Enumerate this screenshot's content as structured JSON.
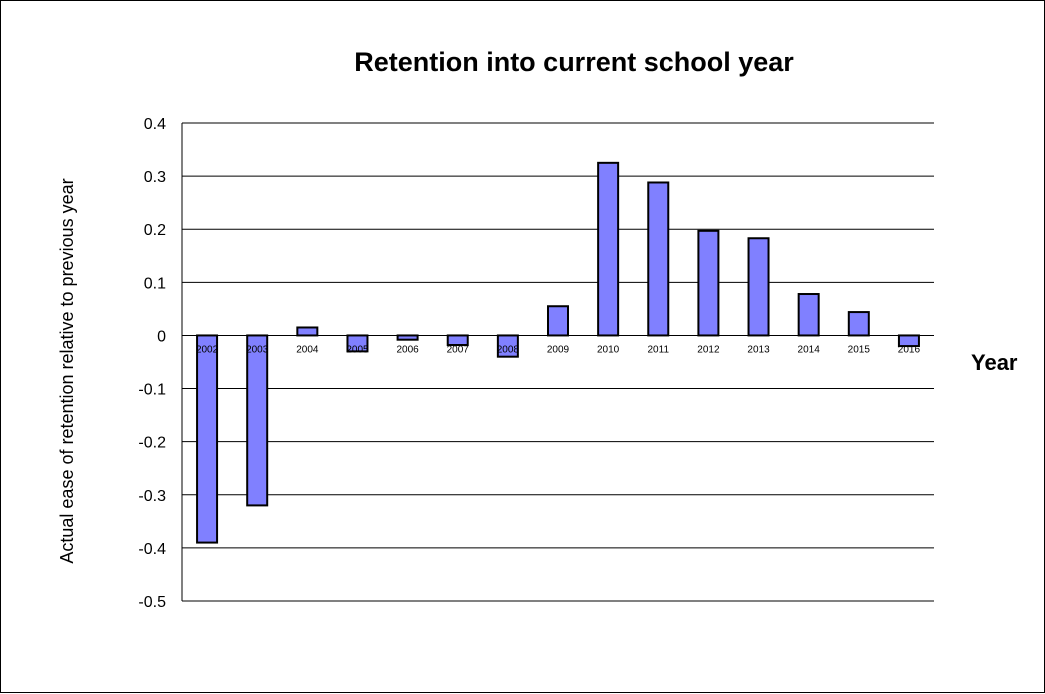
{
  "chart_data": {
    "type": "bar",
    "title": "Retention into current school year",
    "xlabel": "Year",
    "ylabel": "Actual ease of retention relative to previous year",
    "categories": [
      "2002",
      "2003",
      "2004",
      "2005",
      "2006",
      "2007",
      "2008",
      "2009",
      "2010",
      "2011",
      "2012",
      "2013",
      "2014",
      "2015",
      "2016"
    ],
    "values": [
      -0.39,
      -0.32,
      0.015,
      -0.03,
      -0.008,
      -0.018,
      -0.04,
      0.055,
      0.325,
      0.288,
      0.197,
      0.183,
      0.078,
      0.044,
      -0.02
    ],
    "ylim": [
      -0.5,
      0.4
    ],
    "yticks": [
      "0.4",
      "0.3",
      "0.2",
      "0.1",
      "0",
      "-0.1",
      "-0.2",
      "-0.3",
      "-0.4",
      "-0.5"
    ],
    "bar_color": "#8080ff",
    "grid": true,
    "legend": "none"
  }
}
